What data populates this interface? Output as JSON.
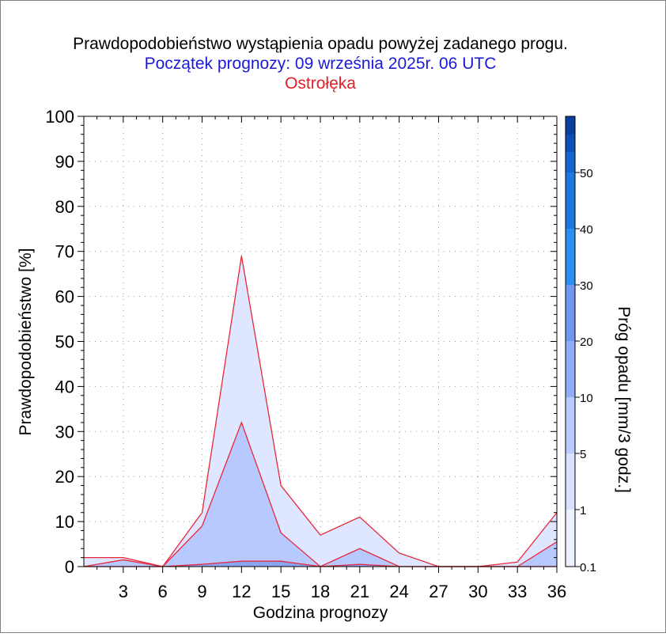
{
  "chart_data": {
    "type": "area",
    "title": "Prawdopodobieństwo wystąpienia opadu powyżej zadanego progu.",
    "subtitle": "Początek prognozy: 09 września 2025r. 06 UTC",
    "location": "Ostrołęka",
    "xlabel": "Godzina prognozy",
    "ylabel": "Prawdopodobieństwo [%]",
    "colorbar_label": "Próg opadu [mm/3 godz.]",
    "xlim": [
      0,
      36
    ],
    "ylim": [
      0,
      100
    ],
    "x_ticks": [
      3,
      6,
      9,
      12,
      15,
      18,
      21,
      24,
      27,
      30,
      33,
      36
    ],
    "y_ticks": [
      0,
      10,
      20,
      30,
      40,
      50,
      60,
      70,
      80,
      90,
      100
    ],
    "grid": true,
    "x": [
      0,
      3,
      6,
      9,
      12,
      15,
      18,
      21,
      24,
      27,
      30,
      33,
      36
    ],
    "series": [
      {
        "threshold": "0.1",
        "color": "#dfe6ff",
        "values": [
          2,
          2,
          0,
          12,
          69,
          18,
          7,
          11,
          3,
          0,
          0,
          1,
          12
        ]
      },
      {
        "threshold": "1",
        "color": "#b8c9ff",
        "values": [
          0,
          1.5,
          0,
          9,
          32,
          7.5,
          0,
          4,
          0,
          0,
          0,
          0,
          5.5
        ]
      },
      {
        "threshold": "5",
        "color": "#8aa6f2",
        "values": [
          0,
          0,
          0,
          0.5,
          1.2,
          1.2,
          0,
          0.5,
          0,
          0,
          0,
          0,
          0
        ]
      }
    ],
    "colorbar": {
      "labels": [
        "0.1",
        "1",
        "5",
        "10",
        "20",
        "30",
        "40",
        "50"
      ],
      "colors": [
        "#eef1ff",
        "#d9e1ff",
        "#b9cbff",
        "#8faef5",
        "#6d98ee",
        "#2a8ff0",
        "#1a78e0",
        "#1464d2",
        "#0d50b8",
        "#0a3f9e"
      ]
    }
  }
}
